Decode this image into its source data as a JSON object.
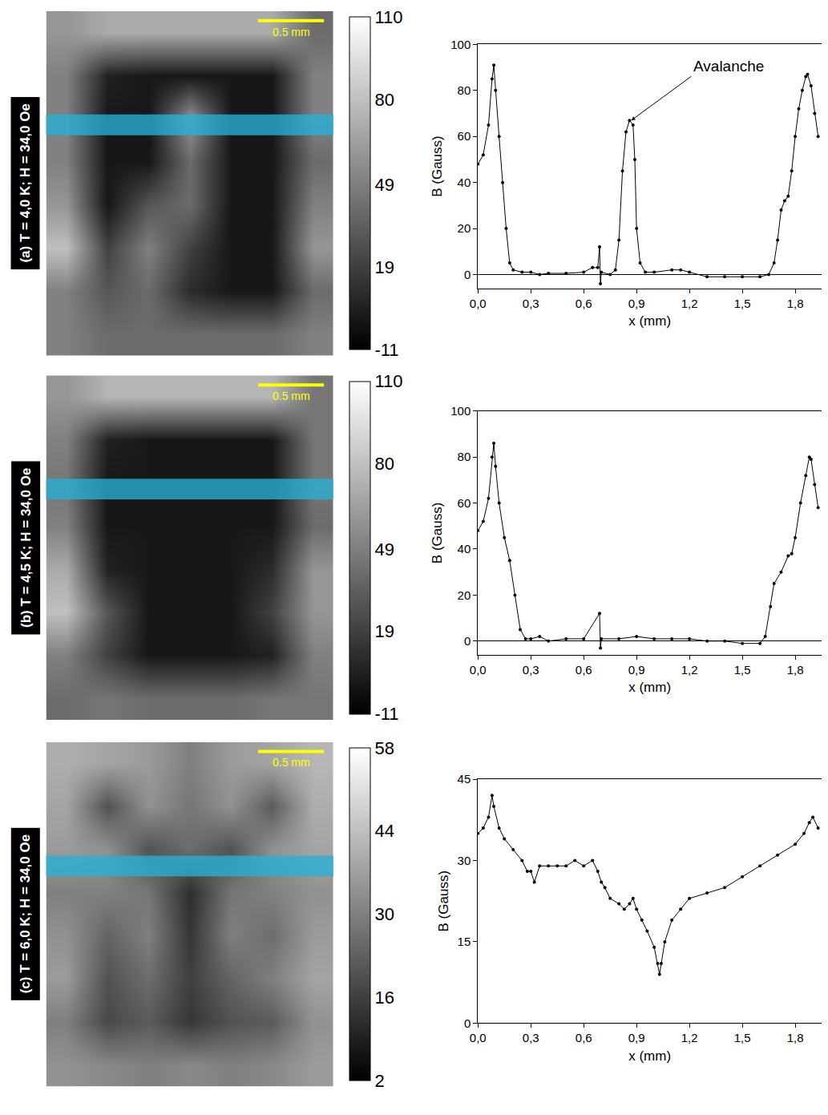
{
  "chart_data": [
    {
      "type": "heatmap",
      "title": "(a) T = 4,0 K; H = 34,0 Oe",
      "annotations": [
        "0.5 mm"
      ],
      "tick_labels": false,
      "cells": [
        [
          60,
          70,
          70,
          70,
          70,
          70,
          40
        ],
        [
          50,
          5,
          0,
          0,
          0,
          0,
          50
        ],
        [
          50,
          0,
          0,
          60,
          0,
          0,
          50
        ],
        [
          50,
          0,
          0,
          40,
          0,
          0,
          40
        ],
        [
          60,
          0,
          30,
          40,
          0,
          0,
          50
        ],
        [
          80,
          20,
          50,
          20,
          0,
          0,
          60
        ],
        [
          50,
          30,
          40,
          10,
          0,
          0,
          40
        ],
        [
          50,
          40,
          40,
          40,
          40,
          40,
          50
        ]
      ],
      "colorbar_range": [
        -11,
        110
      ],
      "colorbar_ticks": [
        110,
        80,
        49,
        19,
        -11
      ]
    },
    {
      "type": "scatter",
      "xlabel": "x (mm)",
      "ylabel": "B (Gauss)",
      "color": "#000000",
      "marker": "circle",
      "line_style": "solid",
      "grid": false,
      "x": [
        0.0,
        0.03,
        0.06,
        0.08,
        0.09,
        0.1,
        0.12,
        0.14,
        0.16,
        0.18,
        0.2,
        0.25,
        0.3,
        0.35,
        0.4,
        0.5,
        0.6,
        0.65,
        0.68,
        0.69,
        0.695,
        0.7,
        0.75,
        0.78,
        0.8,
        0.82,
        0.84,
        0.86,
        0.88,
        0.89,
        0.9,
        0.92,
        0.95,
        1.0,
        1.1,
        1.15,
        1.2,
        1.3,
        1.4,
        1.5,
        1.6,
        1.65,
        1.68,
        1.7,
        1.72,
        1.74,
        1.76,
        1.78,
        1.8,
        1.82,
        1.84,
        1.86,
        1.87,
        1.89,
        1.91,
        1.93
      ],
      "values": [
        48,
        52,
        65,
        85,
        91,
        80,
        60,
        40,
        20,
        5,
        2,
        1,
        1,
        0,
        0.5,
        0.5,
        1,
        3,
        3,
        12,
        -4,
        1,
        0,
        2,
        15,
        45,
        62,
        67,
        65,
        50,
        20,
        5,
        1,
        1,
        2,
        2,
        1,
        -1,
        -1,
        -1,
        -1,
        0,
        5,
        15,
        28,
        32,
        34,
        45,
        60,
        72,
        80,
        86,
        87,
        82,
        70,
        60
      ],
      "xlim": [
        0,
        1.95
      ],
      "ylim": [
        -6,
        100
      ],
      "xticks": [
        {
          "value": 0,
          "label": "0,0"
        },
        {
          "value": 0.3,
          "label": "0,3"
        },
        {
          "value": 0.6,
          "label": "0,6"
        },
        {
          "value": 0.9,
          "label": "0,9"
        },
        {
          "value": 1.2,
          "label": "1,2"
        },
        {
          "value": 1.5,
          "label": "1,5"
        },
        {
          "value": 1.8,
          "label": "1,8"
        }
      ],
      "yticks": [
        0,
        20,
        40,
        60,
        80,
        100
      ],
      "annotations": [
        {
          "text": "Avalanche",
          "x": 0.87,
          "y": 67
        }
      ]
    },
    {
      "type": "heatmap",
      "title": "(b) T = 4,5 K; H = 34,0 Oe",
      "annotations": [
        "0.5 mm"
      ],
      "tick_labels": false,
      "cells": [
        [
          60,
          75,
          75,
          75,
          75,
          75,
          45
        ],
        [
          50,
          5,
          0,
          0,
          0,
          0,
          45
        ],
        [
          45,
          0,
          0,
          0,
          0,
          0,
          45
        ],
        [
          50,
          0,
          0,
          0,
          0,
          0,
          40
        ],
        [
          70,
          5,
          0,
          0,
          0,
          10,
          60
        ],
        [
          80,
          30,
          0,
          0,
          0,
          20,
          60
        ],
        [
          50,
          20,
          0,
          0,
          0,
          5,
          50
        ],
        [
          40,
          45,
          40,
          40,
          40,
          45,
          45
        ]
      ],
      "colorbar_range": [
        -11,
        110
      ],
      "colorbar_ticks": [
        110,
        80,
        49,
        19,
        -11
      ]
    },
    {
      "type": "scatter",
      "xlabel": "x (mm)",
      "ylabel": "B (Gauss)",
      "color": "#000000",
      "marker": "circle",
      "line_style": "solid",
      "grid": false,
      "x": [
        0.0,
        0.03,
        0.06,
        0.08,
        0.09,
        0.1,
        0.12,
        0.15,
        0.18,
        0.21,
        0.24,
        0.27,
        0.3,
        0.35,
        0.4,
        0.5,
        0.6,
        0.69,
        0.695,
        0.7,
        0.8,
        0.9,
        1.0,
        1.1,
        1.2,
        1.3,
        1.4,
        1.5,
        1.6,
        1.63,
        1.66,
        1.68,
        1.72,
        1.76,
        1.78,
        1.8,
        1.83,
        1.86,
        1.88,
        1.89,
        1.91,
        1.93
      ],
      "values": [
        48,
        52,
        62,
        80,
        86,
        76,
        60,
        45,
        35,
        20,
        5,
        1,
        1,
        2,
        0,
        1,
        1,
        12,
        -3,
        1,
        1,
        2,
        1,
        1,
        1,
        0,
        0,
        -1,
        -1,
        2,
        15,
        25,
        30,
        37,
        38,
        45,
        60,
        72,
        80,
        79,
        68,
        58
      ],
      "xlim": [
        0,
        1.95
      ],
      "ylim": [
        -6,
        100
      ],
      "xticks": [
        {
          "value": 0,
          "label": "0,0"
        },
        {
          "value": 0.3,
          "label": "0,3"
        },
        {
          "value": 0.6,
          "label": "0,6"
        },
        {
          "value": 0.9,
          "label": "0,9"
        },
        {
          "value": 1.2,
          "label": "1,2"
        },
        {
          "value": 1.5,
          "label": "1,5"
        },
        {
          "value": 1.8,
          "label": "1,8"
        }
      ],
      "yticks": [
        0,
        20,
        40,
        60,
        80,
        100
      ]
    },
    {
      "type": "heatmap",
      "title": "(c) T = 6,0 K; H = 34,0 Oe",
      "annotations": [
        "0.5 mm"
      ],
      "tick_labels": false,
      "cells": [
        [
          40,
          38,
          36,
          30,
          36,
          38,
          42
        ],
        [
          38,
          20,
          34,
          28,
          34,
          22,
          40
        ],
        [
          36,
          34,
          20,
          26,
          20,
          34,
          38
        ],
        [
          30,
          30,
          28,
          12,
          28,
          30,
          34
        ],
        [
          34,
          24,
          30,
          14,
          30,
          26,
          36
        ],
        [
          36,
          20,
          26,
          16,
          24,
          30,
          38
        ],
        [
          30,
          18,
          22,
          14,
          20,
          22,
          34
        ],
        [
          34,
          32,
          30,
          32,
          30,
          32,
          36
        ]
      ],
      "colorbar_range": [
        2,
        58
      ],
      "colorbar_ticks": [
        58,
        44,
        30,
        16,
        2
      ]
    },
    {
      "type": "scatter",
      "xlabel": "x (mm)",
      "ylabel": "B (Gauss)",
      "color": "#000000",
      "marker": "circle",
      "line_style": "solid",
      "grid": false,
      "x": [
        0.0,
        0.03,
        0.06,
        0.08,
        0.09,
        0.12,
        0.15,
        0.2,
        0.25,
        0.28,
        0.3,
        0.32,
        0.35,
        0.4,
        0.45,
        0.5,
        0.55,
        0.6,
        0.65,
        0.68,
        0.7,
        0.72,
        0.75,
        0.8,
        0.83,
        0.86,
        0.88,
        0.9,
        0.93,
        0.96,
        1.0,
        1.02,
        1.03,
        1.04,
        1.06,
        1.1,
        1.15,
        1.2,
        1.3,
        1.4,
        1.5,
        1.6,
        1.7,
        1.8,
        1.85,
        1.88,
        1.9,
        1.93
      ],
      "values": [
        35,
        36,
        38,
        42,
        40,
        36,
        34,
        32,
        30,
        28,
        28,
        26,
        29,
        29,
        29,
        29,
        30,
        29,
        30,
        28,
        26,
        25,
        23,
        22,
        21,
        22,
        23,
        21,
        19,
        17,
        14,
        11,
        9,
        11,
        15,
        19,
        21,
        23,
        24,
        25,
        27,
        29,
        31,
        33,
        35,
        37,
        38,
        36
      ],
      "xlim": [
        0,
        1.95
      ],
      "ylim": [
        0,
        45
      ],
      "xticks": [
        {
          "value": 0,
          "label": "0,0"
        },
        {
          "value": 0.3,
          "label": "0,3"
        },
        {
          "value": 0.6,
          "label": "0,6"
        },
        {
          "value": 0.9,
          "label": "0,9"
        },
        {
          "value": 1.2,
          "label": "1,2"
        },
        {
          "value": 1.5,
          "label": "1,5"
        },
        {
          "value": 1.8,
          "label": "1,8"
        }
      ],
      "yticks": [
        0,
        15,
        30,
        45
      ]
    }
  ]
}
